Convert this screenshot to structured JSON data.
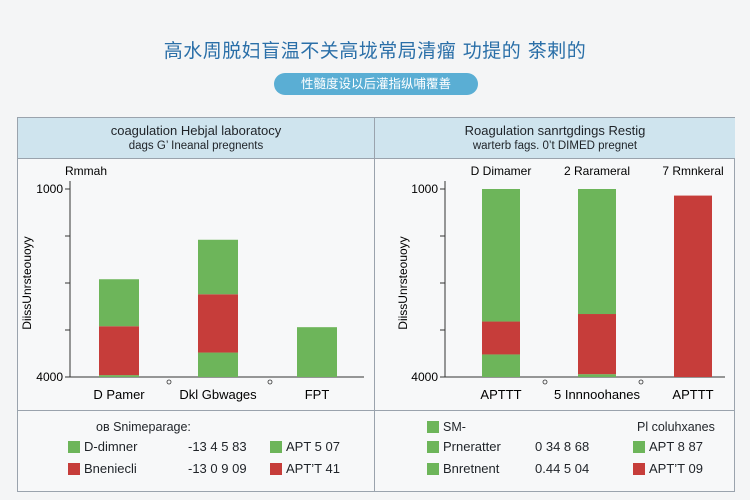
{
  "header": {
    "title": "高水周脱妇盲温不关高垅常局清瘤 功提的 茶剌的",
    "subtitle": "性髓度设以后灌指纵哺覆善"
  },
  "colors": {
    "green": "#6db55a",
    "red": "#c63d3a",
    "axis": "#333333"
  },
  "chart_data": [
    {
      "type": "bar",
      "title": "coagulation Hebjal laboratocy",
      "subtitle": "dags G’ Ineanal pregnents",
      "ylabel": "DiissUnrsteouoyy",
      "series_label": "Rmmah",
      "y_ticks": [
        "1000",
        "",
        "",
        "",
        "4000"
      ],
      "ylim": [
        0,
        1000
      ],
      "categories": [
        "D Pamer",
        "Dkl Gbwages",
        "FPT"
      ],
      "stacked_segments": [
        [
          {
            "color": "green",
            "value": 10
          },
          {
            "color": "red",
            "value": 260
          },
          {
            "color": "green",
            "value": 250
          }
        ],
        [
          {
            "color": "green",
            "value": 130
          },
          {
            "color": "red",
            "value": 310
          },
          {
            "color": "green",
            "value": 290
          }
        ],
        [
          {
            "color": "green",
            "value": 265
          }
        ]
      ],
      "legend": {
        "heading": "oʙ Snimeparage:",
        "rows": [
          {
            "color": "green",
            "label": "D-dimner",
            "values": "-13  4 5  83",
            "right_color": "green",
            "right_label": "APT  5  07"
          },
          {
            "color": "red",
            "label": "Bneniecli",
            "values": "-13  0 9  09",
            "right_color": "red",
            "right_label": "APT’T  41"
          }
        ]
      }
    },
    {
      "type": "bar",
      "title": "Roagulation sanrtgdings Restig",
      "subtitle": "warterb fags. 0’t DIMED pregnet",
      "ylabel": "DiissUnrsteouoyy",
      "y_ticks": [
        "1000",
        "",
        "",
        "",
        "4000"
      ],
      "ylim": [
        0,
        1000
      ],
      "column_headers": [
        "D Dimamer",
        "2  Rarameral",
        "7  Rmnkeral"
      ],
      "categories": [
        "APTTT",
        "5 Innnoohanes",
        "APTTT"
      ],
      "stacked_segments": [
        [
          {
            "color": "green",
            "value": 120
          },
          {
            "color": "red",
            "value": 175
          },
          {
            "color": "green",
            "value": 705
          }
        ],
        [
          {
            "color": "green",
            "value": 15
          },
          {
            "color": "red",
            "value": 320
          },
          {
            "color": "green",
            "value": 665
          }
        ],
        [
          {
            "color": "red",
            "value": 965
          }
        ]
      ],
      "legend": {
        "heading_left": "SM-",
        "heading_right": "Pl  coluhxanes",
        "rows": [
          {
            "color": "green",
            "label": "Prneratter",
            "values": "0 34  8  68",
            "right_color": "green",
            "right_label": "APT  8  87"
          },
          {
            "color": "green",
            "label": "Bnretnent",
            "values": "0.44  5  04",
            "right_color": "red",
            "right_label": "APT’T  09"
          }
        ]
      }
    }
  ]
}
